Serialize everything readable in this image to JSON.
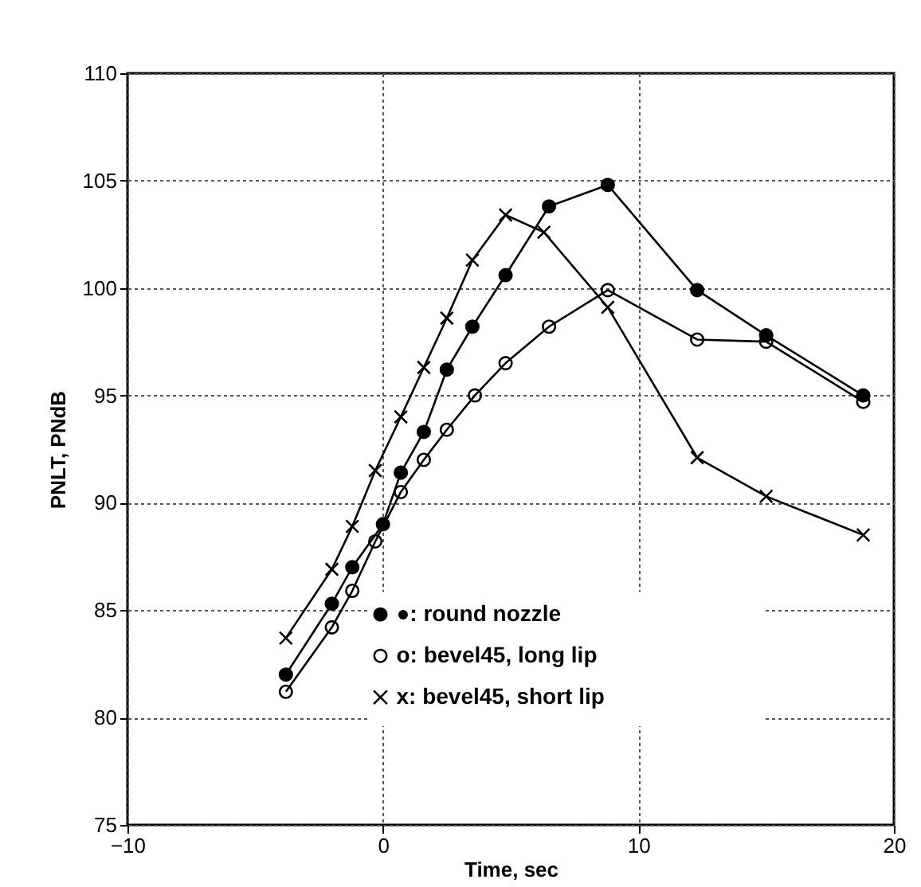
{
  "chart_data": {
    "type": "line",
    "xlabel": "Time, sec",
    "ylabel": "PNLT, PNdB",
    "xlim": [
      -10,
      20
    ],
    "xticks": [
      -10,
      0,
      10,
      20
    ],
    "ylim": [
      75,
      110
    ],
    "yticks": [
      75,
      80,
      85,
      90,
      95,
      100,
      105,
      110
    ],
    "grid": true,
    "legend": "bottom",
    "line_style": "solid",
    "series": [
      {
        "name": "●: round nozzle",
        "color": "#000000",
        "marker": "circle",
        "x": [
          -3.8,
          -2.0,
          -1.2,
          0,
          0.7,
          1.6,
          2.5,
          3.5,
          4.8,
          6.5,
          8.8,
          12.3,
          15,
          18.8
        ],
        "values": [
          82,
          85.3,
          87,
          89,
          91.4,
          93.3,
          96.2,
          98.2,
          100.6,
          103.8,
          104.8,
          99.9,
          97.8,
          95
        ]
      },
      {
        "name": "o: bevel45, long lip",
        "color": "#000000",
        "marker": "circle",
        "x": [
          -3.8,
          -2.0,
          -1.2,
          -0.3,
          0.7,
          1.6,
          2.5,
          3.6,
          4.8,
          6.5,
          8.8,
          12.3,
          15,
          18.8
        ],
        "values": [
          81.2,
          84.2,
          85.9,
          88.2,
          90.5,
          92,
          93.4,
          95,
          96.5,
          98.2,
          99.9,
          97.6,
          97.5,
          94.7
        ]
      },
      {
        "name": "x: bevel45, short lip",
        "color": "#000000",
        "marker": "cross",
        "x": [
          -3.8,
          -2.0,
          -1.2,
          -0.3,
          0.7,
          1.6,
          2.5,
          3.5,
          4.8,
          6.3,
          8.8,
          12.3,
          15,
          18.8
        ],
        "values": [
          83.7,
          86.9,
          88.9,
          91.5,
          94,
          96.3,
          98.6,
          101.3,
          103.4,
          102.6,
          99.1,
          92.1,
          90.3,
          88.5
        ]
      }
    ]
  }
}
